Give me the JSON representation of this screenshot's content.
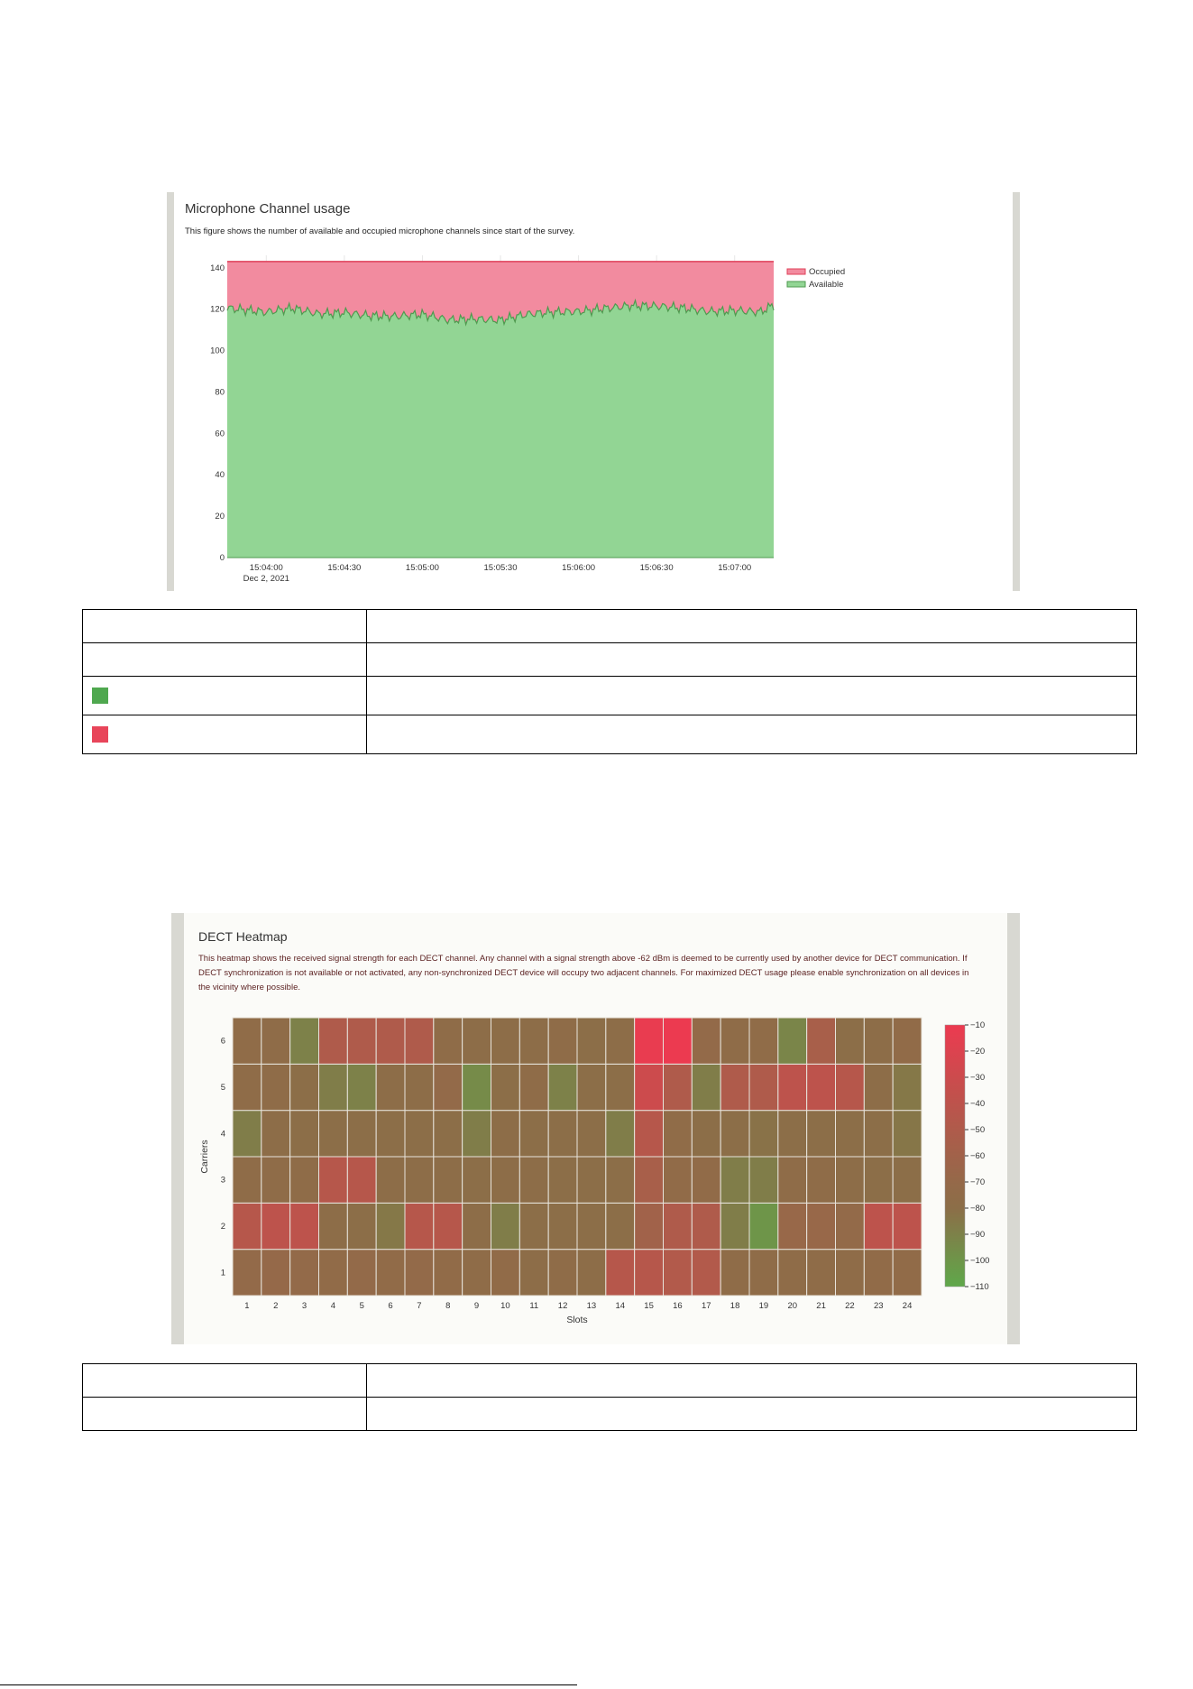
{
  "figure1": {
    "title": "Microphone Channel usage",
    "description": "This figure shows the number of available and occupied microphone channels since start of the survey.",
    "colors": {
      "occupied": "#f28b9f",
      "occupied_line": "#e0405a",
      "available": "#92d594",
      "available_line": "#4f9a4f"
    },
    "chart_data": {
      "type": "area",
      "x_ticks": [
        "15:04:00",
        "15:04:30",
        "15:05:00",
        "15:05:30",
        "15:06:00",
        "15:06:30",
        "15:07:00"
      ],
      "x_tick_sub": "Dec 2, 2021",
      "y_ticks": [
        0,
        20,
        40,
        60,
        80,
        100,
        120,
        140
      ],
      "ylim": [
        0,
        146
      ],
      "x_range_seconds": [
        225,
        435
      ],
      "legend": [
        "Occupied",
        "Available"
      ],
      "legend_position": "top-right",
      "series": [
        {
          "name": "Occupied",
          "total": 143
        },
        {
          "name": "Available",
          "t": [
            225,
            230,
            240,
            250,
            260,
            270,
            280,
            290,
            300,
            310,
            320,
            330,
            340,
            350,
            360,
            370,
            380,
            390,
            400,
            410,
            420,
            430,
            435
          ],
          "values": [
            121,
            120,
            118,
            120,
            118,
            119,
            117,
            116,
            117,
            115,
            116,
            115,
            117,
            118,
            119,
            121,
            122,
            121,
            120,
            119,
            120,
            119,
            122
          ]
        }
      ]
    }
  },
  "table1": {
    "rows": [
      {
        "swatch": "",
        "c1": "",
        "c2": ""
      },
      {
        "swatch": "",
        "c1": "",
        "c2": ""
      },
      {
        "swatch": "#4fa84f",
        "c1": "",
        "c2": ""
      },
      {
        "swatch": "#e8455a",
        "c1": "",
        "c2": ""
      }
    ]
  },
  "figure2": {
    "title": "DECT Heatmap",
    "description": "This heatmap shows the received signal strength for each DECT channel. Any channel with a signal strength above -62 dBm is deemed to be currently used by another device for DECT communication. If DECT synchronization is not available or not activated, any non-synchronized DECT device will occupy two adjacent channels. For maximized DECT usage please enable synchronization on all devices in the vicinity where possible.",
    "chart_data": {
      "type": "heatmap",
      "xlabel": "Slots",
      "ylabel": "Carriers",
      "x": [
        1,
        2,
        3,
        4,
        5,
        6,
        7,
        8,
        9,
        10,
        11,
        12,
        13,
        14,
        15,
        16,
        17,
        18,
        19,
        20,
        21,
        22,
        23,
        24
      ],
      "y": [
        1,
        2,
        3,
        4,
        5,
        6
      ],
      "colorbar_ticks": [
        -10,
        -20,
        -30,
        -40,
        -50,
        -60,
        -70,
        -80,
        -90,
        -100,
        -110
      ],
      "zlim": [
        -110,
        -10
      ],
      "z": [
        [
          -72,
          -70,
          -72,
          -74,
          -72,
          -74,
          -72,
          -74,
          -76,
          -74,
          -78,
          -76,
          -78,
          -45,
          -45,
          -48,
          -48,
          -76,
          -76,
          -76,
          -76,
          -76,
          -74,
          -74
        ],
        [
          -45,
          -40,
          -40,
          -78,
          -80,
          -85,
          -45,
          -45,
          -78,
          -88,
          -80,
          -80,
          -80,
          -80,
          -60,
          -50,
          -50,
          -88,
          -100,
          -68,
          -68,
          -72,
          -40,
          -40
        ],
        [
          -76,
          -76,
          -76,
          -45,
          -45,
          -78,
          -78,
          -78,
          -80,
          -78,
          -78,
          -80,
          -80,
          -80,
          -55,
          -74,
          -74,
          -88,
          -88,
          -76,
          -76,
          -78,
          -80,
          -80
        ],
        [
          -88,
          -78,
          -80,
          -80,
          -80,
          -80,
          -80,
          -80,
          -88,
          -78,
          -80,
          -80,
          -80,
          -88,
          -45,
          -75,
          -80,
          -80,
          -82,
          -80,
          -80,
          -80,
          -80,
          -84
        ],
        [
          -76,
          -76,
          -80,
          -88,
          -90,
          -78,
          -78,
          -72,
          -95,
          -80,
          -76,
          -90,
          -80,
          -80,
          -30,
          -50,
          -88,
          -50,
          -50,
          -40,
          -40,
          -45,
          -78,
          -85
        ],
        [
          -75,
          -76,
          -90,
          -50,
          -50,
          -50,
          -50,
          -76,
          -78,
          -78,
          -78,
          -76,
          -80,
          -78,
          -12,
          -10,
          -72,
          -76,
          -75,
          -92,
          -55,
          -80,
          -78,
          -74
        ]
      ]
    }
  },
  "table2": {
    "rows": [
      {
        "c1": "",
        "c2": ""
      },
      {
        "c1": "",
        "c2": ""
      }
    ]
  }
}
